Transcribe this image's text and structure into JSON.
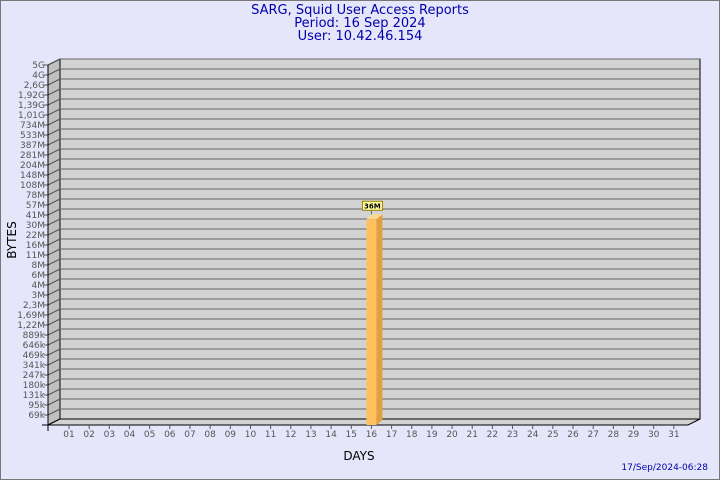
{
  "chart_data": {
    "type": "bar",
    "title": "SARG, Squid User Access Reports",
    "subtitle": [
      "Period: 16 Sep 2024",
      "User: 10.42.46.154"
    ],
    "xlabel": "DAYS",
    "ylabel": "BYTES",
    "y_scale": "log",
    "y_tick_labels": [
      "5G",
      "4G",
      "2,6G",
      "1,92G",
      "1,39G",
      "1,01G",
      "734M",
      "533M",
      "387M",
      "281M",
      "204M",
      "148M",
      "108M",
      "78M",
      "57M",
      "41M",
      "30M",
      "22M",
      "16M",
      "11M",
      "8M",
      "6M",
      "4M",
      "3M",
      "2,3M",
      "1,69M",
      "1,22M",
      "889k",
      "646k",
      "469k",
      "341k",
      "247k",
      "180k",
      "131k",
      "95k",
      "69k"
    ],
    "categories": [
      "01",
      "02",
      "03",
      "04",
      "05",
      "06",
      "07",
      "08",
      "09",
      "10",
      "11",
      "12",
      "13",
      "14",
      "15",
      "16",
      "17",
      "18",
      "19",
      "20",
      "21",
      "22",
      "23",
      "24",
      "25",
      "26",
      "27",
      "28",
      "29",
      "30",
      "31"
    ],
    "bars": [
      {
        "day": "16",
        "value": 36000000,
        "label": "36M"
      }
    ],
    "bar_color": "#ffc060",
    "background": "#e6e6fa",
    "plot_color": "#d3d3d3",
    "grid": true,
    "footer": "17/Sep/2024-06:28"
  }
}
